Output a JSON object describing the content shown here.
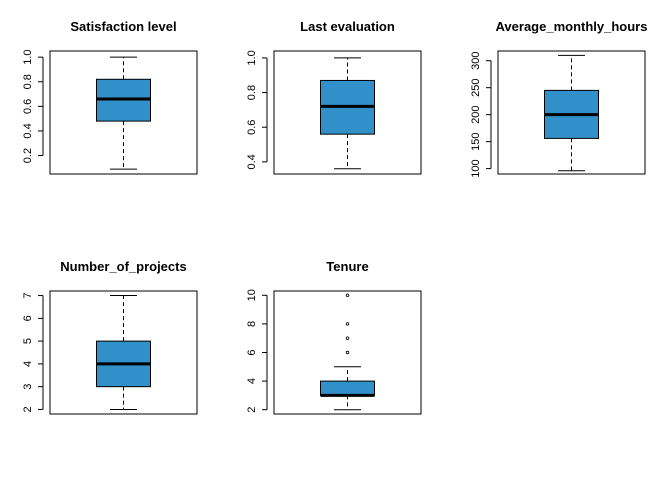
{
  "chart_data": [
    {
      "type": "box",
      "title": "Satisfaction level",
      "xlabel": "",
      "ylabel": "",
      "ylim": [
        0.05,
        1.05
      ],
      "yticks": [
        0.2,
        0.4,
        0.6,
        0.8,
        1.0
      ],
      "ytick_labels": [
        "0.2",
        "0.4",
        "0.6",
        "0.8",
        "1.0"
      ],
      "whisker_low": 0.09,
      "q1": 0.48,
      "median": 0.66,
      "q3": 0.82,
      "whisker_high": 1.0,
      "outliers": [],
      "color": "#3190CA",
      "grid": false
    },
    {
      "type": "box",
      "title": "Last evaluation",
      "xlabel": "",
      "ylabel": "",
      "ylim": [
        0.33,
        1.04
      ],
      "yticks": [
        0.4,
        0.6,
        0.8,
        1.0
      ],
      "ytick_labels": [
        "0.4",
        "0.6",
        "0.8",
        "1.0"
      ],
      "whisker_low": 0.36,
      "q1": 0.56,
      "median": 0.72,
      "q3": 0.87,
      "whisker_high": 1.0,
      "outliers": [],
      "color": "#3190CA",
      "grid": false
    },
    {
      "type": "box",
      "title": "Average_monthly_hours",
      "xlabel": "",
      "ylabel": "",
      "ylim": [
        90,
        318
      ],
      "yticks": [
        100,
        150,
        200,
        250,
        300
      ],
      "ytick_labels": [
        "100",
        "150",
        "200",
        "250",
        "300"
      ],
      "whisker_low": 96,
      "q1": 156,
      "median": 200,
      "q3": 245,
      "whisker_high": 310,
      "outliers": [],
      "color": "#3190CA",
      "grid": false
    },
    {
      "type": "box",
      "title": "Number_of_projects",
      "xlabel": "",
      "ylabel": "",
      "ylim": [
        1.8,
        7.2
      ],
      "yticks": [
        2,
        3,
        4,
        5,
        6,
        7
      ],
      "ytick_labels": [
        "2",
        "3",
        "4",
        "5",
        "6",
        "7"
      ],
      "whisker_low": 2,
      "q1": 3,
      "median": 4,
      "q3": 5,
      "whisker_high": 7,
      "outliers": [],
      "color": "#3190CA",
      "grid": false
    },
    {
      "type": "box",
      "title": "Tenure",
      "xlabel": "",
      "ylabel": "",
      "ylim": [
        1.7,
        10.3
      ],
      "yticks": [
        2,
        4,
        6,
        8,
        10
      ],
      "ytick_labels": [
        "2",
        "4",
        "6",
        "8",
        "10"
      ],
      "whisker_low": 2,
      "q1": 3,
      "median": 3,
      "q3": 4,
      "whisker_high": 5,
      "outliers": [
        6,
        7,
        8,
        10
      ],
      "color": "#3190CA",
      "grid": false
    }
  ]
}
